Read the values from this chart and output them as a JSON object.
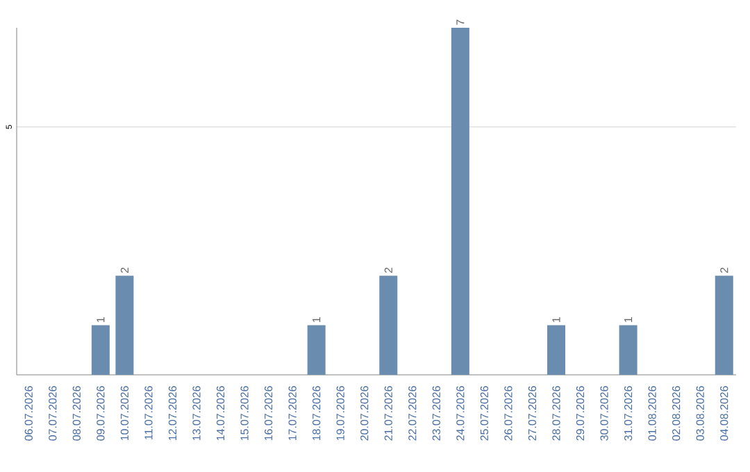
{
  "chart_data": {
    "type": "bar",
    "categories": [
      "06.07.2026",
      "07.07.2026",
      "08.07.2026",
      "09.07.2026",
      "10.07.2026",
      "11.07.2026",
      "12.07.2026",
      "13.07.2026",
      "14.07.2026",
      "15.07.2026",
      "16.07.2026",
      "17.07.2026",
      "18.07.2026",
      "19.07.2026",
      "20.07.2026",
      "21.07.2026",
      "22.07.2026",
      "23.07.2026",
      "24.07.2026",
      "25.07.2026",
      "26.07.2026",
      "27.07.2026",
      "28.07.2026",
      "29.07.2026",
      "30.07.2026",
      "31.07.2026",
      "01.08.2026",
      "02.08.2026",
      "03.08.2026",
      "04.08.2026"
    ],
    "values": [
      0,
      0,
      0,
      1,
      2,
      0,
      0,
      0,
      0,
      0,
      0,
      0,
      1,
      0,
      0,
      2,
      0,
      0,
      7,
      0,
      0,
      0,
      1,
      0,
      0,
      1,
      0,
      0,
      0,
      2
    ],
    "value_labels": [
      null,
      null,
      null,
      "1",
      "2",
      null,
      null,
      null,
      null,
      null,
      null,
      null,
      "1",
      null,
      null,
      "2",
      null,
      null,
      "7",
      null,
      null,
      null,
      "1",
      null,
      null,
      "1",
      null,
      null,
      null,
      "2"
    ],
    "color": "#6a8caf",
    "ylim": [
      0,
      7
    ],
    "yticks": [
      5
    ],
    "grid": "y"
  }
}
